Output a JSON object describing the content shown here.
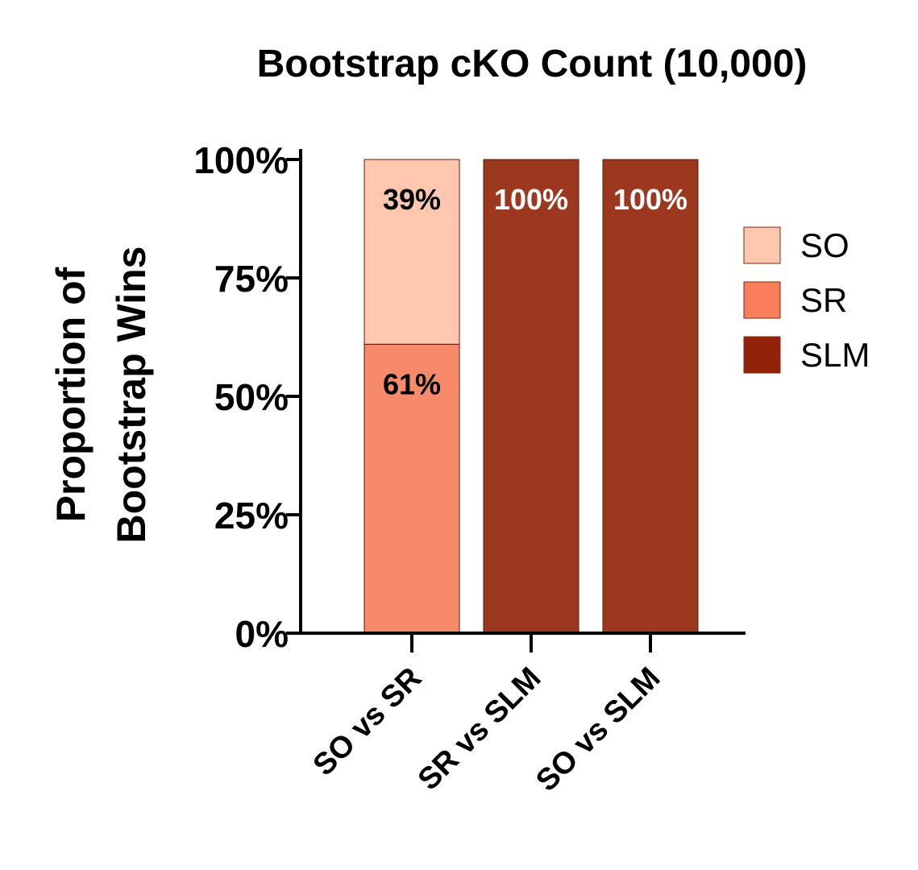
{
  "chart_data": {
    "type": "bar",
    "stacked": true,
    "title": "Bootstrap cKO Count (10,000)",
    "ylabel_lines": [
      "Proportion of",
      "Bootstrap Wins"
    ],
    "xlabel": "",
    "ylim": [
      0,
      100
    ],
    "yticks": [
      0,
      25,
      50,
      75,
      100
    ],
    "ytick_labels": [
      "0%",
      "25%",
      "50%",
      "75%",
      "100%"
    ],
    "categories": [
      "SO vs SR",
      "SR vs SLM",
      "SO vs SLM"
    ],
    "series": [
      {
        "name": "SO",
        "values": [
          39,
          0,
          0
        ],
        "color": "#FFC7B0",
        "label_color": "#000000"
      },
      {
        "name": "SR",
        "values": [
          61,
          0,
          0
        ],
        "color": "#F88A6C",
        "label_color": "#000000"
      },
      {
        "name": "SLM",
        "values": [
          0,
          100,
          100
        ],
        "color": "#9B381F",
        "label_color": "#FFFFFF"
      }
    ],
    "stack_order_bottom_to_top": [
      "SR",
      "SO",
      "SLM"
    ],
    "data_labels": [
      [
        "39%",
        "",
        ""
      ],
      [
        "61%",
        "",
        ""
      ],
      [
        "",
        "100%",
        "100%"
      ]
    ],
    "legend": {
      "position": "right",
      "entries": [
        {
          "name": "SO",
          "color": "#FFC7B0"
        },
        {
          "name": "SR",
          "color": "#FA7D5C"
        },
        {
          "name": "SLM",
          "color": "#92220A"
        }
      ]
    },
    "grid": false
  }
}
